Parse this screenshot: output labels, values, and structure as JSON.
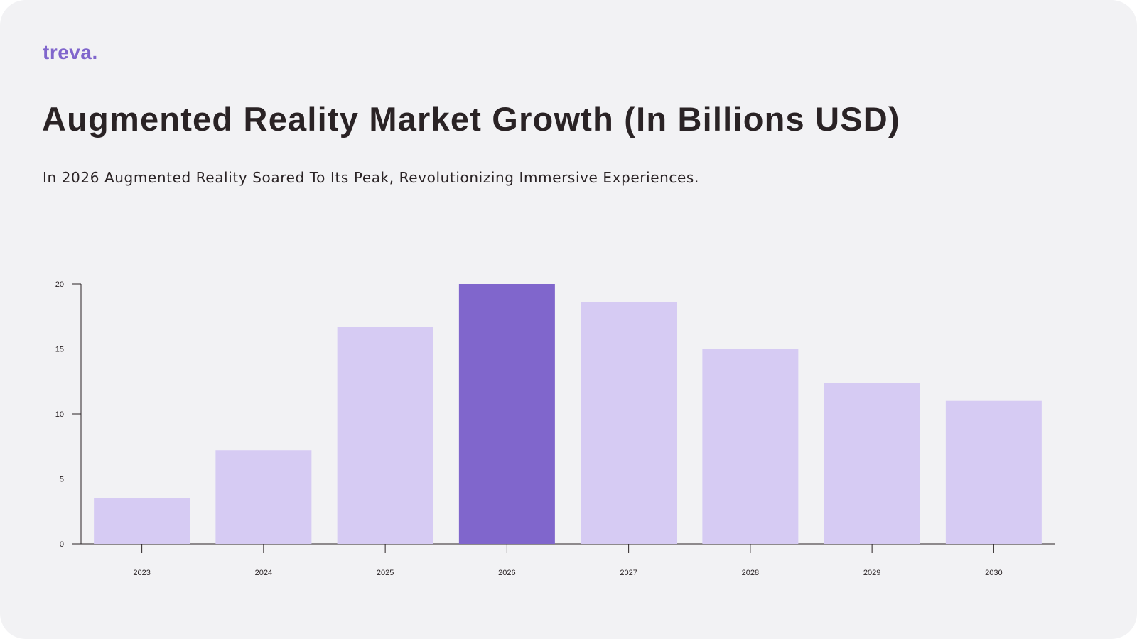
{
  "brand": {
    "logo_text": "treva.",
    "accent": "#8066cc",
    "bar_light": "#d6cbf3",
    "text_color": "#2a2325"
  },
  "header": {
    "title": "Augmented Reality Market Growth (In Billions USD)",
    "subtitle": "In 2026 Augmented Reality Soared To Its Peak, Revolutionizing Immersive Experiences."
  },
  "chart_data": {
    "type": "bar",
    "title": "Augmented Reality Market Growth (In Billions USD)",
    "xlabel": "",
    "ylabel": "",
    "categories": [
      "2023",
      "2024",
      "2025",
      "2026",
      "2027",
      "2028",
      "2029",
      "2030"
    ],
    "values": [
      3.5,
      7.2,
      16.7,
      20,
      18.6,
      15,
      12.4,
      11
    ],
    "highlight": "2026",
    "ylim": [
      0,
      20
    ],
    "yticks": [
      0,
      5,
      10,
      15,
      20
    ],
    "grid": false,
    "legend": "none"
  }
}
